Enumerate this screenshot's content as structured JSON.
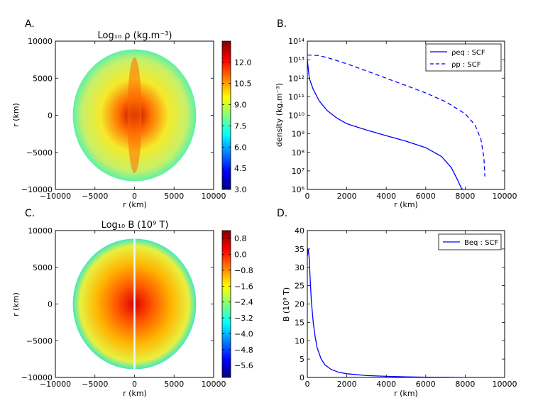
{
  "chart_data": [
    {
      "panel": "A.",
      "type": "heatmap",
      "title": "Log₁₀ ρ (kg.m⁻³)",
      "xlabel": "r (km)",
      "ylabel": "r (km)",
      "xlim": [
        -10000,
        10000
      ],
      "ylim": [
        -10000,
        10000
      ],
      "xticks": [
        -10000,
        -5000,
        0,
        5000,
        10000
      ],
      "yticks": [
        -10000,
        -5000,
        0,
        5000,
        10000
      ],
      "xticklabels": [
        "−10000",
        "−5000",
        "0",
        "5000",
        "10000"
      ],
      "yticklabels": [
        "−10000",
        "−5000",
        "0",
        "5000",
        "10000"
      ],
      "colormap": "jet",
      "colorbar_range": [
        3.0,
        13.5
      ],
      "colorbar_ticks": [
        "3.0",
        "4.5",
        "6.0",
        "7.5",
        "9.0",
        "10.5",
        "12.0"
      ],
      "colorbar_tick_values": [
        3.0,
        4.5,
        6.0,
        7.5,
        9.0,
        10.5,
        12.0
      ],
      "star_radius_eq": 7800,
      "star_radius_pol": 8900,
      "colors": {
        "core": "#b80000",
        "inner": "#ff6a00",
        "mid": "#f6e92a",
        "outer": "#c6f06a",
        "edge": "#5ef0a8"
      }
    },
    {
      "panel": "B.",
      "type": "line",
      "title": "",
      "xlabel": "r (km)",
      "ylabel": "density (kg.m⁻³)",
      "xlim": [
        0,
        10000
      ],
      "ylim": [
        1000000,
        100000000000000
      ],
      "yscale": "log",
      "xticks": [
        0,
        2000,
        4000,
        6000,
        8000,
        10000
      ],
      "xticklabels": [
        "0",
        "2000",
        "4000",
        "6000",
        "8000",
        "10000"
      ],
      "yticks_exp": [
        6,
        7,
        8,
        9,
        10,
        11,
        12,
        13,
        14
      ],
      "yticklabels": [
        "10⁶",
        "10⁷",
        "10⁸",
        "10⁹",
        "10¹⁰",
        "10¹¹",
        "10¹²",
        "10¹³",
        "10¹⁴"
      ],
      "legend_position": "top-right",
      "series": [
        {
          "name": "ρeq : SCF",
          "style": "solid",
          "color": "#0000ff",
          "x": [
            0,
            100,
            300,
            600,
            1000,
            1500,
            2000,
            3000,
            4000,
            5000,
            6000,
            6800,
            7300,
            7600,
            7800,
            7880
          ],
          "y": [
            10000000000000,
            1000000000000,
            250000000000,
            60000000000,
            18000000000,
            7000000000,
            3500000000,
            1600000000,
            800000000,
            400000000,
            180000000,
            60000000,
            15000000,
            3500000,
            1200000,
            1000000
          ]
        },
        {
          "name": "ρp : SCF",
          "style": "dashed",
          "color": "#0000ff",
          "x": [
            0,
            500,
            1000,
            2000,
            3000,
            4000,
            5000,
            6000,
            7000,
            8000,
            8500,
            8800,
            8950,
            9000
          ],
          "y": [
            18000000000000,
            17000000000000,
            13000000000000,
            6000000000000,
            2500000000000,
            1000000000000,
            400000000000,
            160000000000,
            55000000000,
            12000000000,
            3000000000,
            500000000,
            50000000,
            5000000
          ]
        }
      ]
    },
    {
      "panel": "C.",
      "type": "heatmap",
      "title": "Log₁₀  B (10⁹  T)",
      "xlabel": "r (km)",
      "ylabel": "r (km)",
      "xlim": [
        -10000,
        10000
      ],
      "ylim": [
        -10000,
        10000
      ],
      "xticks": [
        -10000,
        -5000,
        0,
        5000,
        10000
      ],
      "yticks": [
        -10000,
        -5000,
        0,
        5000,
        10000
      ],
      "xticklabels": [
        "−10000",
        "−5000",
        "0",
        "5000",
        "10000"
      ],
      "yticklabels": [
        "−10000",
        "−5000",
        "0",
        "5000",
        "10000"
      ],
      "colormap": "jet",
      "colorbar_range": [
        -6.2,
        1.2
      ],
      "colorbar_ticks": [
        "−5.6",
        "−4.8",
        "−4.0",
        "−3.2",
        "−2.4",
        "−1.6",
        "−0.8",
        "0.0",
        "0.8"
      ],
      "colorbar_tick_values": [
        -5.6,
        -4.8,
        -4.0,
        -3.2,
        -2.4,
        -1.6,
        -0.8,
        0.0,
        0.8
      ],
      "star_radius_eq": 7800,
      "star_radius_pol": 8900,
      "colors": {
        "core": "#e00000",
        "inner": "#ff5a00",
        "mid": "#ffb400",
        "outer": "#e8f040",
        "edge": "#40e8c0"
      }
    },
    {
      "panel": "D.",
      "type": "line",
      "title": "",
      "xlabel": "r (km)",
      "ylabel": "B (10⁹ T)",
      "xlim": [
        0,
        10000
      ],
      "ylim": [
        0,
        40
      ],
      "xticks": [
        0,
        2000,
        4000,
        6000,
        8000,
        10000
      ],
      "xticklabels": [
        "0",
        "2000",
        "4000",
        "6000",
        "8000",
        "10000"
      ],
      "yticks": [
        0,
        5,
        10,
        15,
        20,
        25,
        30,
        35,
        40
      ],
      "yticklabels": [
        "0",
        "5",
        "10",
        "15",
        "20",
        "25",
        "30",
        "35",
        "40"
      ],
      "legend_position": "top-right",
      "series": [
        {
          "name": "Beq : SCF",
          "style": "solid",
          "color": "#0000ff",
          "x": [
            0,
            50,
            100,
            150,
            200,
            300,
            400,
            500,
            700,
            900,
            1200,
            1600,
            2000,
            3000,
            4000,
            5000,
            6000,
            7000,
            7800
          ],
          "y": [
            33,
            35,
            32,
            26,
            21,
            15,
            11,
            8,
            5,
            3.4,
            2.2,
            1.4,
            1.0,
            0.5,
            0.3,
            0.15,
            0.08,
            0.03,
            0
          ]
        }
      ]
    }
  ]
}
